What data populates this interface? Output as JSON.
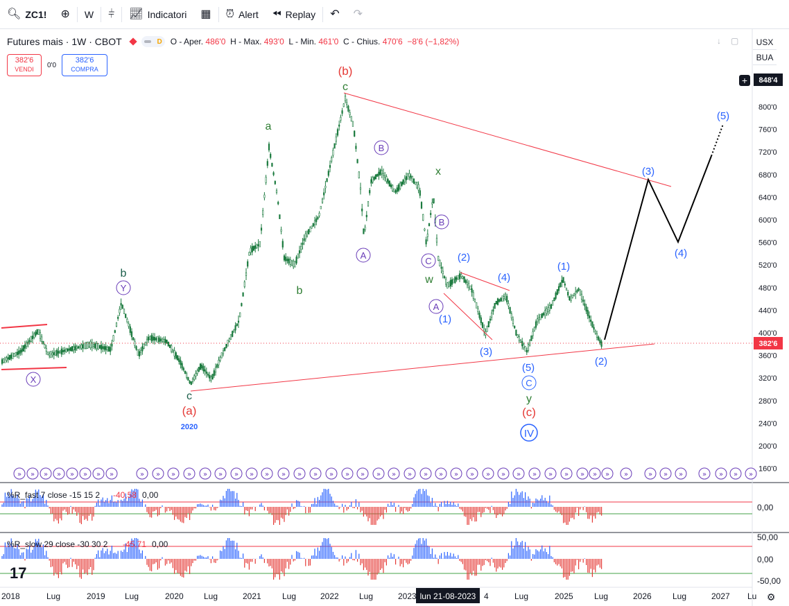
{
  "toolbar": {
    "symbol": "ZC1!",
    "interval": "W",
    "indicators_label": "Indicatori",
    "alert_label": "Alert",
    "replay_label": "Replay"
  },
  "legend": {
    "title": "Futures mais · 1W · CBOT",
    "badge": "D",
    "open_label": "O - Aper.",
    "open": "486'0",
    "high_label": "H - Max.",
    "high": "493'0",
    "low_label": "L - Min.",
    "low": "461'0",
    "close_label": "C - Chius.",
    "close": "470'6",
    "change": "−8'6 (−1,82%)"
  },
  "trade": {
    "sell_price": "382'6",
    "sell_label": "VENDI",
    "spread": "0'0",
    "buy_price": "382'6",
    "buy_label": "COMPRA"
  },
  "right_panel": {
    "currency": "USX",
    "unit": "BUA",
    "crosshair_price": "848'4",
    "last_price": "382'6"
  },
  "price_axis": [
    "800'0",
    "760'0",
    "720'0",
    "680'0",
    "640'0",
    "600'0",
    "560'0",
    "520'0",
    "480'0",
    "440'0",
    "400'0",
    "360'0",
    "320'0",
    "280'0",
    "240'0",
    "200'0",
    "160'0"
  ],
  "time_axis": [
    "2018",
    "Lug",
    "2019",
    "Lug",
    "2020",
    "Lug",
    "2021",
    "Lug",
    "2022",
    "Lug",
    "2023",
    "Lug",
    "2025",
    "Lug",
    "2026",
    "Lug",
    "2027",
    "Lu"
  ],
  "crosshair_date": "lun 21-08-2023",
  "crosshair_date_tail": "4",
  "wave_labels": [
    "(b)",
    "c",
    "a",
    "b",
    "b",
    "c",
    "(a)",
    "2020",
    "B",
    "A",
    "x",
    "B",
    "C",
    "w",
    "A",
    "(2)",
    "(4)",
    "(1)",
    "(1)",
    "(3)",
    "(5)",
    "C",
    "y",
    "(c)",
    "IV",
    "(2)",
    "(3)",
    "(4)",
    "(5)",
    "X",
    "Y"
  ],
  "indicators": {
    "wr_fast_label": "%R_fast 7 close -15 15 2",
    "wr_fast_value": "-40,58",
    "wr_fast_value2": "0,00",
    "wr_fast_axis": "0,00",
    "wr_slow_label": "%R_slow 29 close -30 30 2",
    "wr_slow_value": "-45,71",
    "wr_slow_value2": "0,00",
    "wr_slow_axis": [
      "50,00",
      "0,00",
      "-50,00"
    ]
  },
  "colors": {
    "up": "#2962ff",
    "down": "#f23645",
    "candle": "#1b7a3e",
    "wave_green": "#2e7d32",
    "wave_blue": "#2962ff",
    "wave_red": "#e53935",
    "wave_purple": "#673ab7"
  }
}
